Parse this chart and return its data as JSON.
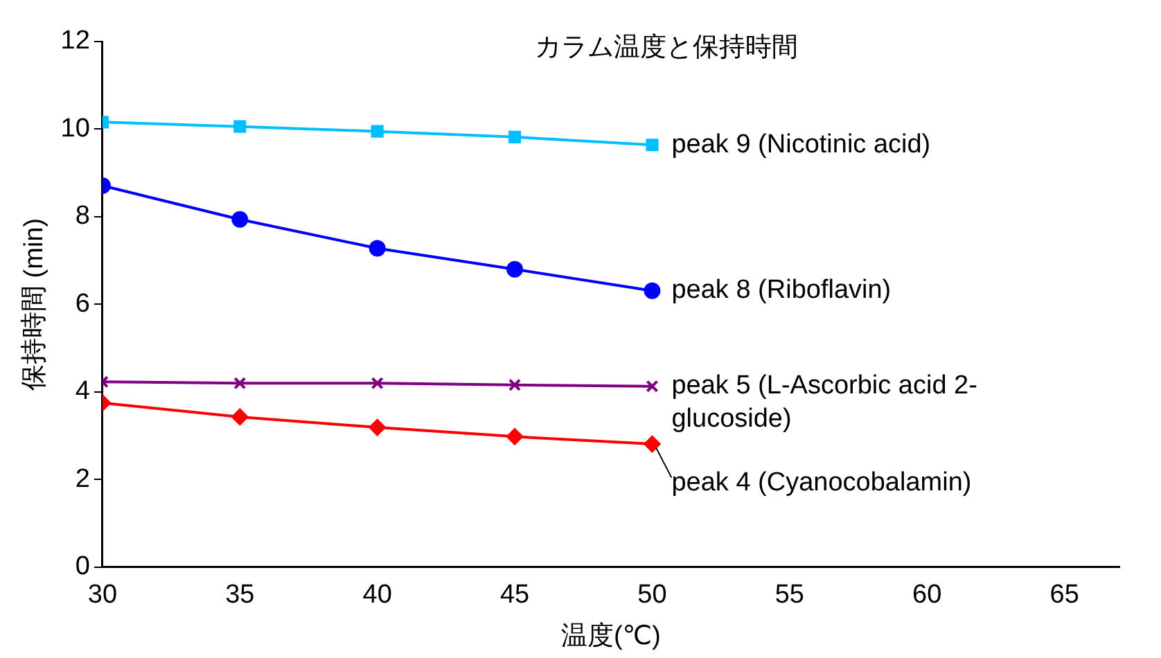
{
  "chart_data": {
    "type": "line",
    "title": "カラム温度と保持時間",
    "xlabel": "温度(℃)",
    "ylabel": "保持時間 (min)",
    "x": [
      30,
      35,
      40,
      45,
      50
    ],
    "series": [
      {
        "name": "peak 9 (Nicotinic acid)",
        "color": "#00bfff",
        "marker": "square",
        "values": [
          10.16,
          10.06,
          9.95,
          9.82,
          9.64
        ]
      },
      {
        "name": "peak 8 (Riboflavin)",
        "color": "#0000ff",
        "marker": "circle",
        "values": [
          8.71,
          7.94,
          7.28,
          6.8,
          6.31
        ]
      },
      {
        "name": "peak 5 (L-Ascorbic acid 2-glucoside)",
        "color": "#800080",
        "marker": "cross",
        "values": [
          4.23,
          4.2,
          4.2,
          4.16,
          4.13
        ]
      },
      {
        "name": "peak 4 (Cyanocobalamin)",
        "color": "#ff0000",
        "marker": "diamond",
        "values": [
          3.75,
          3.43,
          3.19,
          2.98,
          2.81
        ]
      }
    ],
    "xlim": [
      30,
      67
    ],
    "xticks": [
      30,
      35,
      40,
      45,
      50,
      55,
      60,
      65
    ],
    "ylim": [
      0,
      12
    ],
    "yticks": [
      0,
      2,
      4,
      6,
      8,
      10,
      12
    ],
    "grid": false,
    "legend": false
  }
}
